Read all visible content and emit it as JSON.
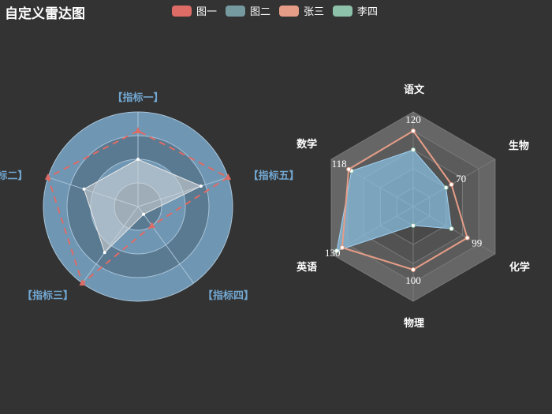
{
  "title": "自定义雷达图",
  "legend": [
    {
      "label": "图一",
      "color": "#dd6b66"
    },
    {
      "label": "图二",
      "color": "#759aa0"
    },
    {
      "label": "张三",
      "color": "#e69d87"
    },
    {
      "label": "李四",
      "color": "#8dc1a9"
    }
  ],
  "chart_data": [
    {
      "type": "radar",
      "shape": "circle",
      "indicators": [
        {
          "name": "【指标一】",
          "max": 100
        },
        {
          "name": "【指标二】",
          "max": 100
        },
        {
          "name": "【指标三】",
          "max": 100
        },
        {
          "name": "【指标四】",
          "max": 100
        },
        {
          "name": "【指标五】",
          "max": 100
        }
      ],
      "series": [
        {
          "name": "图一",
          "values": [
            80,
            100,
            100,
            25,
            100
          ],
          "line_style": "dashed",
          "color": "#dd6b66"
        },
        {
          "name": "图二",
          "values": [
            50,
            60,
            60,
            10,
            70
          ],
          "line_style": "solid",
          "fill": true,
          "color": "#d0d0d0"
        }
      ]
    },
    {
      "type": "radar",
      "shape": "polygon",
      "indicators": [
        {
          "name": "语文",
          "max": 150
        },
        {
          "name": "数学",
          "max": 150
        },
        {
          "name": "英语",
          "max": 150
        },
        {
          "name": "物理",
          "max": 150
        },
        {
          "name": "化学",
          "max": 150
        },
        {
          "name": "生物",
          "max": 150
        }
      ],
      "series": [
        {
          "name": "张三",
          "values": [
            120,
            118,
            130,
            100,
            99,
            70
          ],
          "color": "#e69d87",
          "show_labels": true
        },
        {
          "name": "李四",
          "values": [
            90,
            113,
            140,
            30,
            70,
            60
          ],
          "color": "#8dc1a9",
          "fill": true
        }
      ]
    }
  ]
}
